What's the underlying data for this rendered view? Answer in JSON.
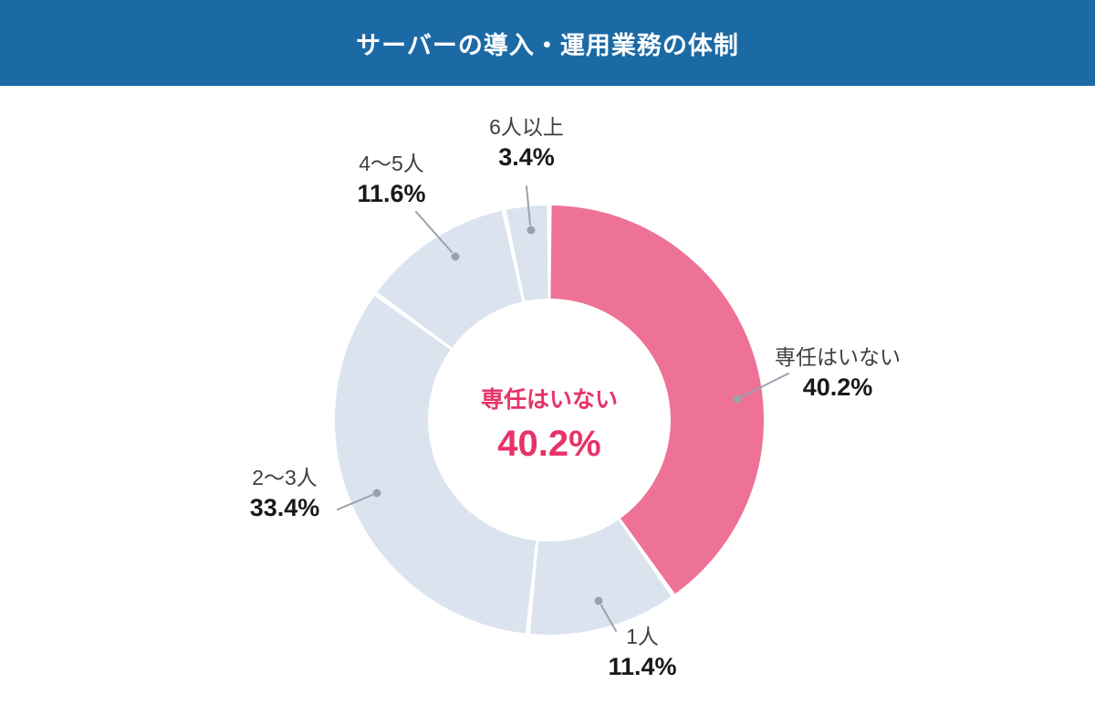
{
  "header": {
    "title": "サーバーの導入・運用業務の体制"
  },
  "chart_data": {
    "type": "pie",
    "subtype": "donut",
    "title": "サーバーの導入・運用業務の体制",
    "start_angle_deg": 0,
    "direction": "clockwise",
    "categories": [
      "専任はいない",
      "1人",
      "2〜3人",
      "4〜5人",
      "6人以上"
    ],
    "values": [
      40.2,
      11.4,
      33.4,
      11.6,
      3.4
    ],
    "unit": "%",
    "colors": [
      "#EE7296",
      "#DBE3EF",
      "#DBE3EF",
      "#DBE3EF",
      "#DBE3EF"
    ],
    "center_label": {
      "text": "専任はいない",
      "value": "40.2%"
    },
    "legend_position": "none",
    "label_style": "outside-with-leader-lines"
  },
  "labels": {
    "none_dedicated": {
      "name": "専任はいない",
      "value": "40.2%"
    },
    "one_person": {
      "name": "1人",
      "value": "11.4%"
    },
    "two_three": {
      "name": "2〜3人",
      "value": "33.4%"
    },
    "four_five": {
      "name": "4〜5人",
      "value": "11.6%"
    },
    "six_plus": {
      "name": "6人以上",
      "value": "3.4%"
    }
  },
  "center": {
    "label": "専任はいない",
    "value": "40.2%"
  },
  "colors": {
    "header_bg": "#1B6AA5",
    "header_text": "#FFFFFF",
    "accent_pink": "#EE7296",
    "segment_light": "#DBE3EF",
    "center_text": "#E73369",
    "label_text": "#3C4043",
    "value_text": "#17191C",
    "leader_line": "#9AA2AC"
  }
}
